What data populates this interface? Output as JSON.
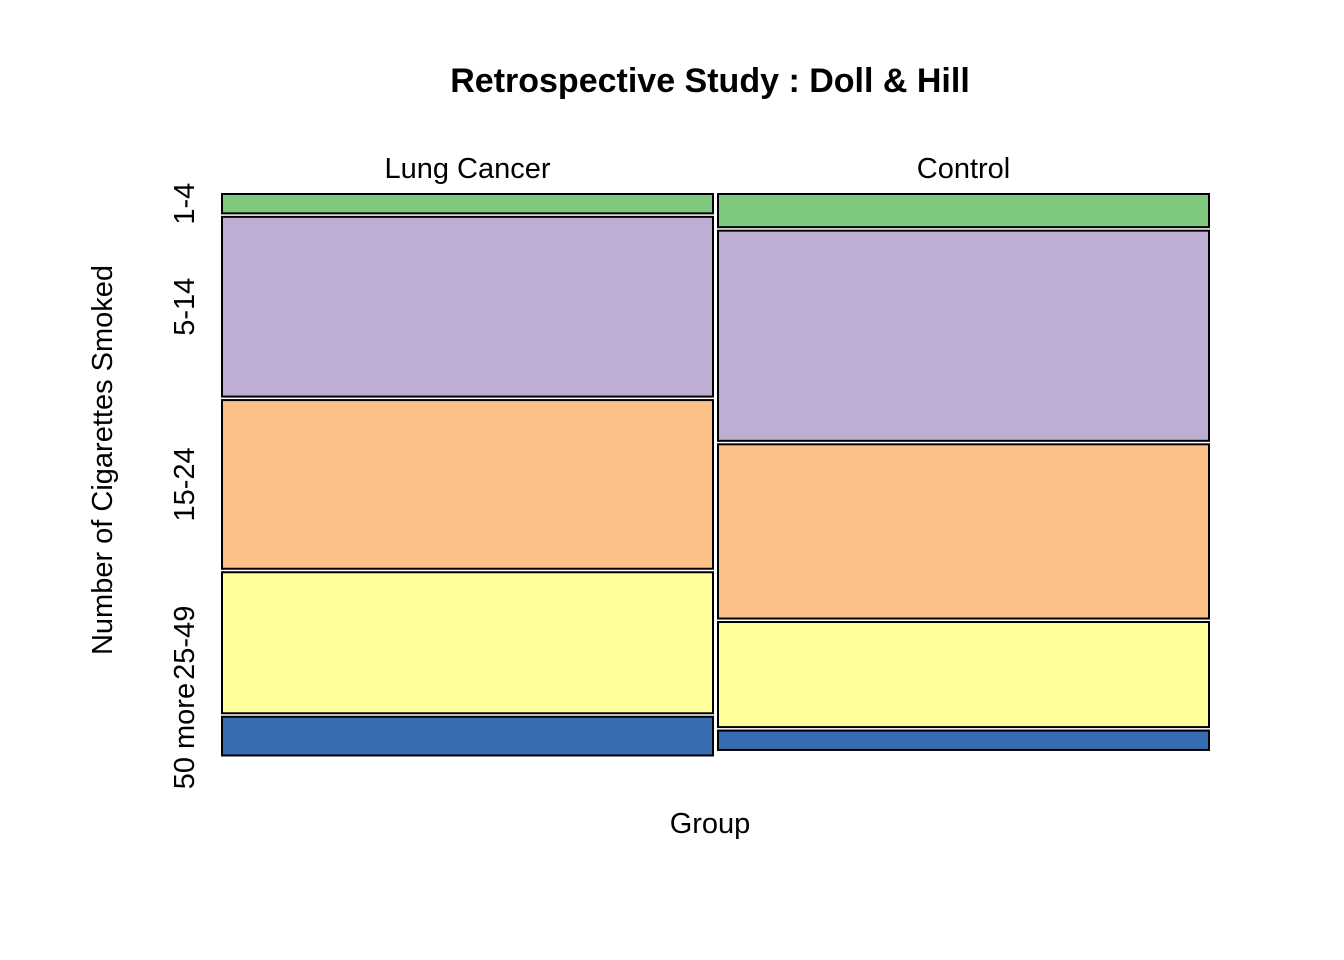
{
  "chart_data": {
    "type": "mosaic",
    "title": "Retrospective Study : Doll & Hill",
    "xlabel": "Group",
    "ylabel": "Number of Cigarettes Smoked",
    "groups": [
      "Lung Cancer",
      "Control"
    ],
    "categories": [
      "1-4",
      "5-14",
      "15-24",
      "25-49",
      "50 more"
    ],
    "group_proportions": [
      0.5,
      0.5
    ],
    "series": [
      {
        "name": "Lung Cancer",
        "proportions": [
          0.035,
          0.325,
          0.305,
          0.255,
          0.07
        ]
      },
      {
        "name": "Control",
        "proportions": [
          0.06,
          0.38,
          0.315,
          0.19,
          0.035
        ]
      }
    ],
    "colors": [
      "#7fc97f",
      "#beaed4",
      "#fdc086",
      "#ffff99",
      "#386cb0"
    ]
  }
}
